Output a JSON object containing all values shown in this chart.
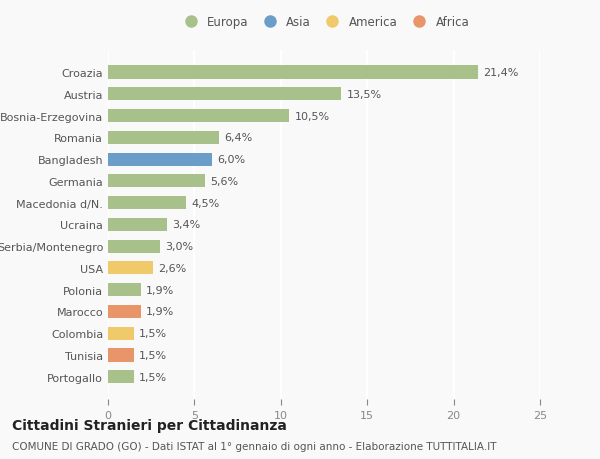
{
  "countries": [
    "Croazia",
    "Austria",
    "Bosnia-Erzegovina",
    "Romania",
    "Bangladesh",
    "Germania",
    "Macedonia d/N.",
    "Ucraina",
    "Serbia/Montenegro",
    "USA",
    "Polonia",
    "Marocco",
    "Colombia",
    "Tunisia",
    "Portogallo"
  ],
  "values": [
    21.4,
    13.5,
    10.5,
    6.4,
    6.0,
    5.6,
    4.5,
    3.4,
    3.0,
    2.6,
    1.9,
    1.9,
    1.5,
    1.5,
    1.5
  ],
  "labels": [
    "21,4%",
    "13,5%",
    "10,5%",
    "6,4%",
    "6,0%",
    "5,6%",
    "4,5%",
    "3,4%",
    "3,0%",
    "2,6%",
    "1,9%",
    "1,9%",
    "1,5%",
    "1,5%",
    "1,5%"
  ],
  "continents": [
    "Europa",
    "Europa",
    "Europa",
    "Europa",
    "Asia",
    "Europa",
    "Europa",
    "Europa",
    "Europa",
    "America",
    "Europa",
    "Africa",
    "America",
    "Africa",
    "Europa"
  ],
  "continent_colors": {
    "Europa": "#a8c08a",
    "Asia": "#6a9ec9",
    "America": "#f0c96a",
    "Africa": "#e8956a"
  },
  "legend_order": [
    "Europa",
    "Asia",
    "America",
    "Africa"
  ],
  "xlim": [
    0,
    25
  ],
  "xticks": [
    0,
    5,
    10,
    15,
    20,
    25
  ],
  "title": "Cittadini Stranieri per Cittadinanza",
  "subtitle": "COMUNE DI GRADO (GO) - Dati ISTAT al 1° gennaio di ogni anno - Elaborazione TUTTITALIA.IT",
  "bg_color": "#f9f9f9",
  "grid_color": "#ffffff",
  "bar_height": 0.6,
  "label_fontsize": 8,
  "title_fontsize": 10,
  "subtitle_fontsize": 7.5,
  "tick_fontsize": 8,
  "legend_fontsize": 8.5
}
